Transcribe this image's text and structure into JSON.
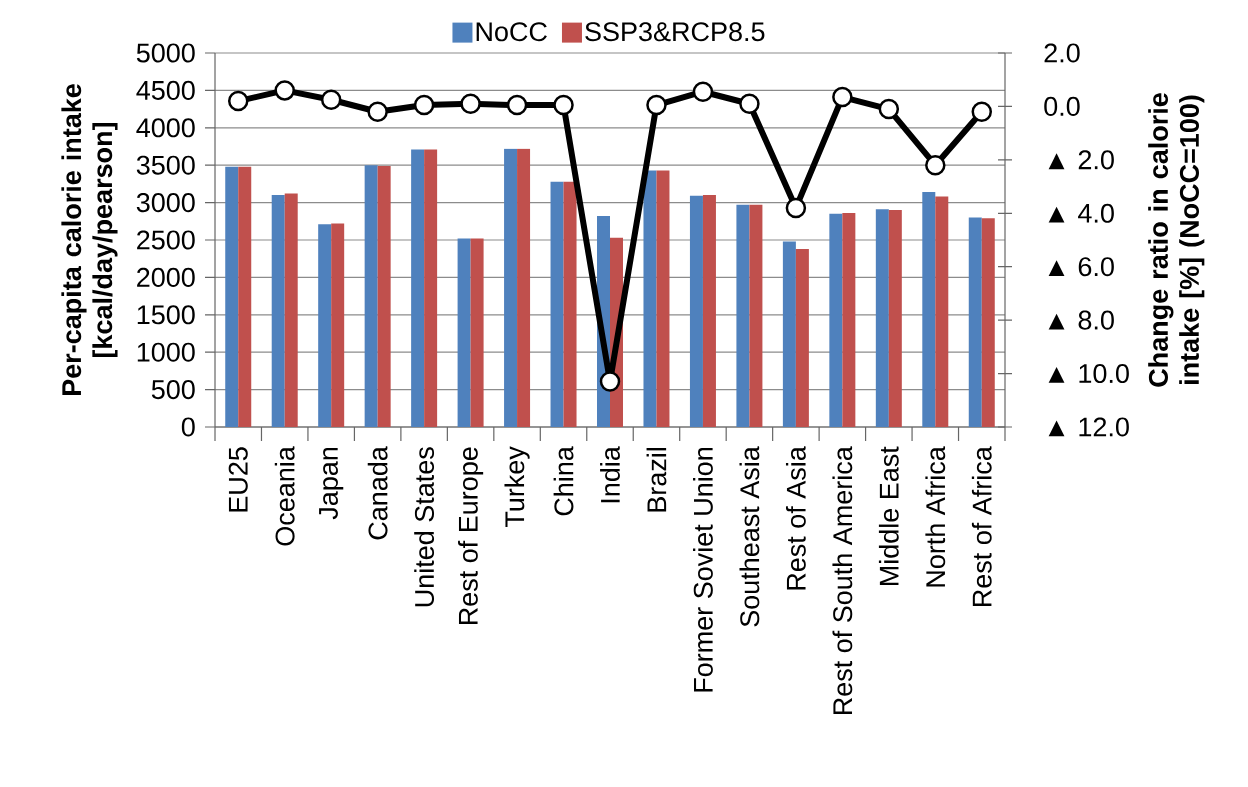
{
  "chart_data": {
    "type": "bar",
    "ylabel": "Per-capita calorie intake [kcal/day/pearson]",
    "y2label": "Change ratio in calorie intake [%] (NoCC=100)",
    "categories": [
      "EU25",
      "Oceania",
      "Japan",
      "Canada",
      "United States",
      "Rest of Europe",
      "Turkey",
      "China",
      "India",
      "Brazil",
      "Former Soviet Union",
      "Southeast Asia",
      "Rest of Asia",
      "Rest of South America",
      "Middle East",
      "North Africa",
      "Rest of Africa"
    ],
    "series": [
      {
        "name": "NoCC",
        "type": "bar",
        "color": "#4f81bd",
        "values": [
          3480,
          3100,
          2710,
          3500,
          3710,
          2520,
          3720,
          3280,
          2820,
          3430,
          3090,
          2970,
          2480,
          2850,
          2910,
          3140,
          2800
        ]
      },
      {
        "name": "SSP3&RCP8.5",
        "type": "bar",
        "color": "#c0504d",
        "values": [
          3480,
          3120,
          2720,
          3490,
          3710,
          2520,
          3720,
          3280,
          2530,
          3430,
          3100,
          2970,
          2380,
          2860,
          2900,
          3080,
          2790
        ]
      },
      {
        "type": "line",
        "axis": "y2",
        "color": "#000000",
        "marker": "circle",
        "values": [
          0.2,
          0.6,
          0.25,
          -0.2,
          0.05,
          0.1,
          0.05,
          0.05,
          -10.3,
          0.05,
          0.55,
          0.1,
          -3.8,
          0.35,
          -0.1,
          -2.2,
          -0.2
        ]
      }
    ],
    "ylim": [
      0,
      5000
    ],
    "yticks": [
      0,
      500,
      1000,
      1500,
      2000,
      2500,
      3000,
      3500,
      4000,
      4500,
      5000
    ],
    "y2lim": [
      -12,
      2
    ],
    "y2ticks": [
      {
        "value": 2,
        "label": "2.0"
      },
      {
        "value": 0,
        "label": "0.0"
      },
      {
        "value": -2,
        "label": "▲ 2.0"
      },
      {
        "value": -4,
        "label": "▲ 4.0"
      },
      {
        "value": -6,
        "label": "▲ 6.0"
      },
      {
        "value": -8,
        "label": "▲ 8.0"
      },
      {
        "value": -10,
        "label": "▲ 10.0"
      },
      {
        "value": -12,
        "label": "▲ 12.0"
      }
    ],
    "grid": "y",
    "legend": "top"
  }
}
